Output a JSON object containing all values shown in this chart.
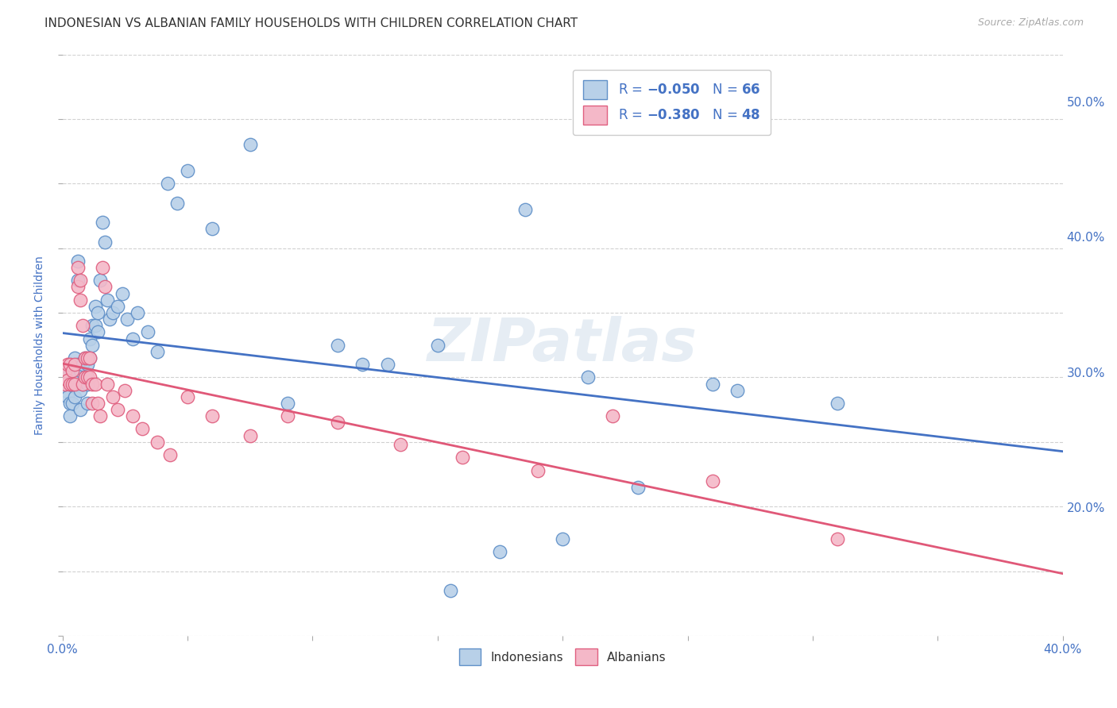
{
  "title": "INDONESIAN VS ALBANIAN FAMILY HOUSEHOLDS WITH CHILDREN CORRELATION CHART",
  "source": "Source: ZipAtlas.com",
  "ylabel": "Family Households with Children",
  "watermark": "ZIPatlas",
  "indonesian_color": "#b8d0e8",
  "albanian_color": "#f4b8c8",
  "indonesian_edge_color": "#6090c8",
  "albanian_edge_color": "#e06080",
  "indonesian_line_color": "#4472c4",
  "albanian_line_color": "#e05878",
  "xlim": [
    0.0,
    0.4
  ],
  "ylim": [
    0.105,
    0.535
  ],
  "background_color": "#ffffff",
  "grid_color": "#cccccc",
  "title_color": "#333333",
  "title_fontsize": 11,
  "tick_label_color": "#4472c4",
  "legend_text_color": "#4472c4",
  "indo_x": [
    0.001,
    0.001,
    0.002,
    0.002,
    0.003,
    0.003,
    0.003,
    0.004,
    0.004,
    0.004,
    0.005,
    0.005,
    0.005,
    0.006,
    0.006,
    0.006,
    0.007,
    0.007,
    0.007,
    0.008,
    0.008,
    0.009,
    0.009,
    0.01,
    0.01,
    0.01,
    0.011,
    0.011,
    0.012,
    0.012,
    0.013,
    0.013,
    0.014,
    0.014,
    0.015,
    0.016,
    0.017,
    0.018,
    0.019,
    0.02,
    0.022,
    0.024,
    0.026,
    0.028,
    0.03,
    0.034,
    0.038,
    0.042,
    0.046,
    0.05,
    0.06,
    0.075,
    0.09,
    0.11,
    0.13,
    0.155,
    0.175,
    0.2,
    0.23,
    0.26,
    0.185,
    0.21,
    0.27,
    0.15,
    0.12,
    0.31
  ],
  "indo_y": [
    0.305,
    0.29,
    0.3,
    0.285,
    0.295,
    0.28,
    0.27,
    0.31,
    0.295,
    0.28,
    0.315,
    0.3,
    0.285,
    0.39,
    0.375,
    0.31,
    0.305,
    0.29,
    0.275,
    0.31,
    0.295,
    0.315,
    0.3,
    0.31,
    0.295,
    0.28,
    0.33,
    0.315,
    0.34,
    0.325,
    0.355,
    0.34,
    0.35,
    0.335,
    0.375,
    0.42,
    0.405,
    0.36,
    0.345,
    0.35,
    0.355,
    0.365,
    0.345,
    0.33,
    0.35,
    0.335,
    0.32,
    0.45,
    0.435,
    0.46,
    0.415,
    0.48,
    0.28,
    0.325,
    0.31,
    0.135,
    0.165,
    0.175,
    0.215,
    0.295,
    0.43,
    0.3,
    0.29,
    0.325,
    0.31,
    0.28
  ],
  "alb_x": [
    0.001,
    0.001,
    0.002,
    0.002,
    0.003,
    0.003,
    0.004,
    0.004,
    0.005,
    0.005,
    0.006,
    0.006,
    0.007,
    0.007,
    0.008,
    0.008,
    0.009,
    0.009,
    0.01,
    0.01,
    0.011,
    0.011,
    0.012,
    0.012,
    0.013,
    0.014,
    0.015,
    0.016,
    0.017,
    0.018,
    0.02,
    0.022,
    0.025,
    0.028,
    0.032,
    0.038,
    0.043,
    0.05,
    0.06,
    0.075,
    0.09,
    0.11,
    0.135,
    0.16,
    0.19,
    0.22,
    0.26,
    0.31
  ],
  "alb_y": [
    0.305,
    0.295,
    0.31,
    0.298,
    0.31,
    0.295,
    0.305,
    0.295,
    0.31,
    0.295,
    0.385,
    0.37,
    0.375,
    0.36,
    0.34,
    0.295,
    0.315,
    0.3,
    0.315,
    0.3,
    0.315,
    0.3,
    0.295,
    0.28,
    0.295,
    0.28,
    0.27,
    0.385,
    0.37,
    0.295,
    0.285,
    0.275,
    0.29,
    0.27,
    0.26,
    0.25,
    0.24,
    0.285,
    0.27,
    0.255,
    0.27,
    0.265,
    0.248,
    0.238,
    0.228,
    0.27,
    0.22,
    0.175
  ],
  "yticks_right": [
    0.2,
    0.3,
    0.4,
    0.5
  ]
}
